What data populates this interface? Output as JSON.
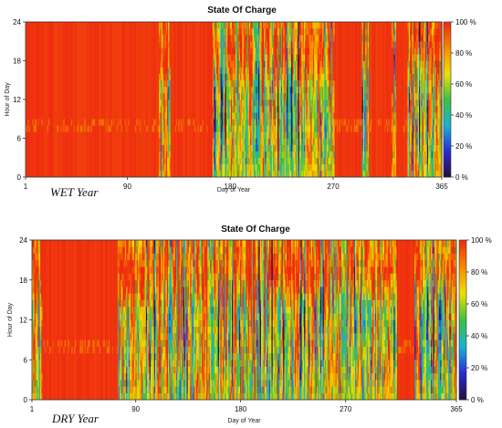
{
  "chart_data": [
    {
      "type": "heatmap",
      "title": "State Of Charge",
      "scenario_label": "WET Year",
      "xlabel": "Day of Year",
      "ylabel": "Hour of Day",
      "xlim": [
        1,
        365
      ],
      "ylim": [
        0,
        24
      ],
      "xticks": [
        "1",
        "90",
        "180",
        "270",
        "365"
      ],
      "xtick_values": [
        1,
        90,
        180,
        270,
        365
      ],
      "yticks": [
        "0",
        "6",
        "12",
        "18",
        "24"
      ],
      "ytick_values": [
        0,
        6,
        12,
        18,
        24
      ],
      "colorbar_ticks": [
        "0 %",
        "20 %",
        "40 %",
        "60 %",
        "80 %",
        "100 %"
      ],
      "colorbar_values": [
        0,
        20,
        40,
        60,
        80,
        100
      ],
      "colors": [
        "#20103a",
        "#2a2ad2",
        "#18b4d4",
        "#3cc040",
        "#f0e000",
        "#f58a00",
        "#ef2a10"
      ],
      "mostly_full_periods_days": [
        [
          1,
          118
        ],
        [
          128,
          165
        ],
        [
          272,
          296
        ],
        [
          302,
          322
        ],
        [
          326,
          336
        ]
      ],
      "variable_periods_days": [
        [
          118,
          128
        ],
        [
          165,
          272
        ],
        [
          296,
          302
        ],
        [
          322,
          326
        ],
        [
          336,
          365
        ]
      ],
      "typical_range_percent": [
        0,
        100
      ]
    },
    {
      "type": "heatmap",
      "title": "State Of Charge",
      "scenario_label": "DRY Year",
      "xlabel": "Day of Year",
      "ylabel": "Hour of Day",
      "xlim": [
        1,
        365
      ],
      "ylim": [
        0,
        24
      ],
      "xticks": [
        "1",
        "90",
        "180",
        "270",
        "365"
      ],
      "xtick_values": [
        1,
        90,
        180,
        270,
        365
      ],
      "yticks": [
        "0",
        "6",
        "12",
        "18",
        "24"
      ],
      "ytick_values": [
        0,
        6,
        12,
        18,
        24
      ],
      "colorbar_ticks": [
        "0 %",
        "20 %",
        "40 %",
        "60 %",
        "80 %",
        "100 %"
      ],
      "colorbar_values": [
        0,
        20,
        40,
        60,
        80,
        100
      ],
      "colors": [
        "#20103a",
        "#2a2ad2",
        "#18b4d4",
        "#3cc040",
        "#f0e000",
        "#f58a00",
        "#ef2a10"
      ],
      "mostly_full_periods_days": [
        [
          10,
          75
        ],
        [
          315,
          330
        ]
      ],
      "variable_periods_days": [
        [
          1,
          10
        ],
        [
          75,
          315
        ],
        [
          330,
          365
        ]
      ],
      "typical_range_percent": [
        0,
        100
      ]
    }
  ]
}
